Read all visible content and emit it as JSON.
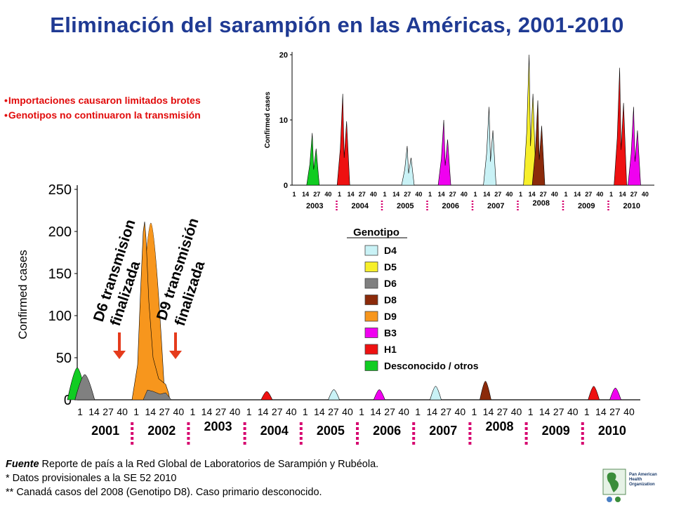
{
  "title": "Eliminación del sarampión en las Américas, 2001-2010",
  "bullets": [
    "Importaciones causaron limitados brotes",
    "Genotipos no continuaron la transmisión"
  ],
  "colors": {
    "title": "#1f3a93",
    "bullets": "#e10b0b",
    "arrow": "#e53b1c",
    "year_separator": "#d6006e",
    "D4": "#c9f2f6",
    "D5": "#f7ef2a",
    "D6": "#808080",
    "D8": "#8b2a0a",
    "D9": "#f7961d",
    "B3": "#f000f0",
    "H1": "#ee1111",
    "Desconocido / otros": "#11cc22"
  },
  "annotations": {
    "d6": [
      "D6 transmision",
      "finalizada"
    ],
    "d9": [
      "D9 transmisión",
      "finalizada"
    ]
  },
  "footnotes": {
    "lead": "Fuente",
    "line1": " Reporte de país a la Red Global de Laboratorios de Sarampión y Rubéola.",
    "line2": "* Datos provisionales a la SE 52 2010",
    "line3": "** Canadá casos del 2008 (Genotipo D8). Caso primario desconocido."
  },
  "logo_text": [
    "Pan American",
    "Health",
    "Organization"
  ],
  "chart_data": [
    {
      "type": "area",
      "ylabel": "Confirmed cases",
      "ylim": [
        0,
        250
      ],
      "yticks": [
        0,
        50,
        100,
        150,
        200,
        250
      ],
      "week_ticks": [
        "1",
        "14",
        "27",
        "40"
      ],
      "years": [
        "2001",
        "2002",
        "2003",
        "2004",
        "2005",
        "2006",
        "2007",
        "2008",
        "2009",
        "2010"
      ],
      "legend_title": "Genotipo",
      "legend": [
        "D4",
        "D5",
        "D6",
        "D8",
        "D9",
        "B3",
        "H1",
        "Desconocido / otros"
      ],
      "peaks": [
        {
          "year": "2001",
          "week": 1,
          "genotype": "Desconocido / otros",
          "value": 38
        },
        {
          "year": "2001",
          "week": 8,
          "genotype": "D6",
          "value": 30
        },
        {
          "year": "2002",
          "week": 17,
          "genotype": "D9",
          "value": 210
        },
        {
          "year": "2004",
          "week": 20,
          "genotype": "H1",
          "value": 10
        },
        {
          "year": "2005",
          "week": 30,
          "genotype": "D4",
          "value": 12
        },
        {
          "year": "2006",
          "week": 20,
          "genotype": "B3",
          "value": 12
        },
        {
          "year": "2007",
          "week": 20,
          "genotype": "D4",
          "value": 16
        },
        {
          "year": "2008",
          "week": 14,
          "genotype": "D8",
          "value": 22
        },
        {
          "year": "2010",
          "week": 10,
          "genotype": "H1",
          "value": 16
        },
        {
          "year": "2010",
          "week": 30,
          "genotype": "B3",
          "value": 14
        }
      ]
    },
    {
      "type": "area",
      "ylabel": "Confirmed cases",
      "ylim": [
        0,
        20
      ],
      "yticks": [
        0,
        10,
        20
      ],
      "week_ticks": [
        "1",
        "14",
        "27",
        "40"
      ],
      "years": [
        "2003",
        "2004",
        "2005",
        "2006",
        "2007",
        "2008",
        "2009",
        "2010"
      ],
      "peaks": [
        {
          "year": "2003",
          "week": 25,
          "genotype": "Desconocido / otros",
          "value": 8
        },
        {
          "year": "2004",
          "week": 8,
          "genotype": "H1",
          "value": 14
        },
        {
          "year": "2005",
          "week": 30,
          "genotype": "D4",
          "value": 6
        },
        {
          "year": "2006",
          "week": 20,
          "genotype": "B3",
          "value": 10
        },
        {
          "year": "2007",
          "week": 20,
          "genotype": "D4",
          "value": 12
        },
        {
          "year": "2008",
          "week": 14,
          "genotype": "D5",
          "value": 20
        },
        {
          "year": "2008",
          "week": 24,
          "genotype": "D8",
          "value": 13
        },
        {
          "year": "2010",
          "week": 14,
          "genotype": "H1",
          "value": 18
        },
        {
          "year": "2010",
          "week": 30,
          "genotype": "B3",
          "value": 12
        }
      ]
    }
  ]
}
